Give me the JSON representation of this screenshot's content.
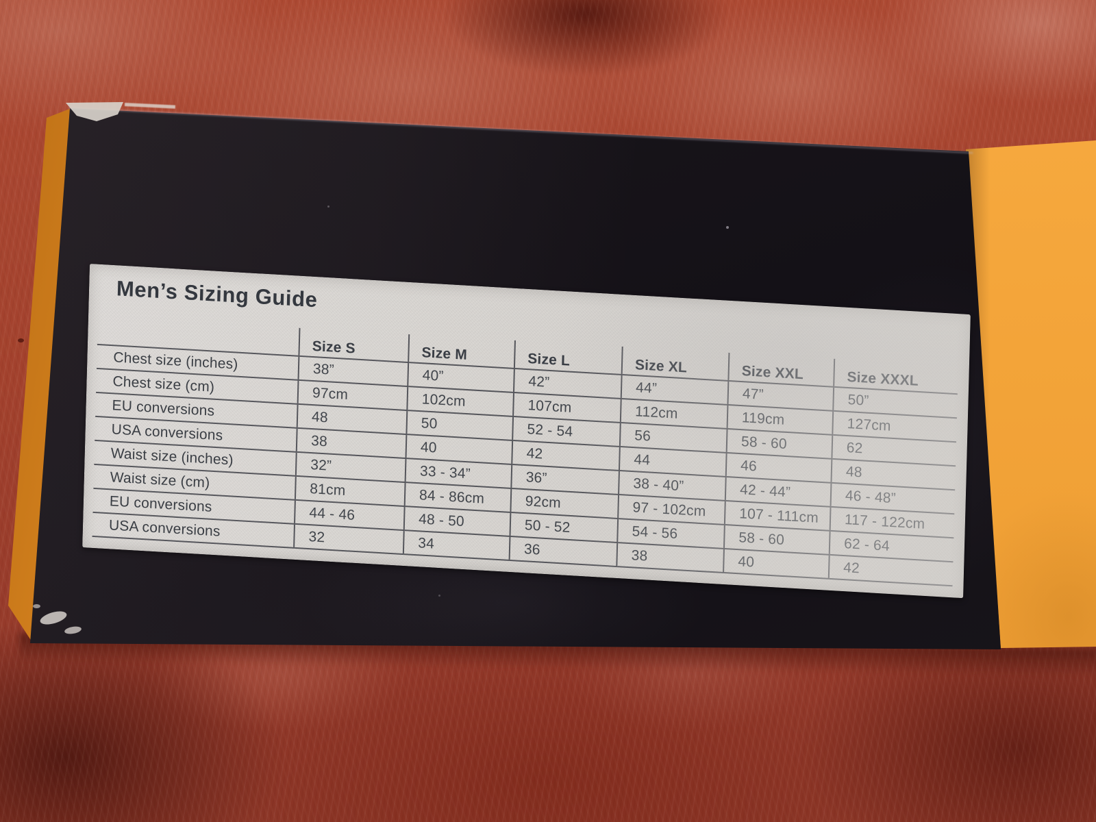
{
  "label": {
    "title": "Men’s Sizing Guide",
    "table": {
      "columns": [
        "",
        "Size S",
        "Size M",
        "Size L",
        "Size XL",
        "Size XXL",
        "Size XXXL"
      ],
      "rows": [
        {
          "label": "Chest size (inches)",
          "values": [
            "38”",
            "40”",
            "42”",
            "44”",
            "47”",
            "50”"
          ]
        },
        {
          "label": "Chest size (cm)",
          "values": [
            "97cm",
            "102cm",
            "107cm",
            "112cm",
            "119cm",
            "127cm"
          ]
        },
        {
          "label": "EU conversions",
          "values": [
            "48",
            "50",
            "52 - 54",
            "56",
            "58 - 60",
            "62"
          ]
        },
        {
          "label": "USA conversions",
          "values": [
            "38",
            "40",
            "42",
            "44",
            "46",
            "48"
          ]
        },
        {
          "label": "Waist size (inches)",
          "values": [
            "32”",
            "33 - 34”",
            "36”",
            "38 - 40”",
            "42 - 44”",
            "46 - 48”"
          ]
        },
        {
          "label": "Waist size (cm)",
          "values": [
            "81cm",
            "84 - 86cm",
            "92cm",
            "97 - 102cm",
            "107 - 111cm",
            "117 - 122cm"
          ]
        },
        {
          "label": "EU conversions",
          "values": [
            "44 - 46",
            "48 - 50",
            "50 - 52",
            "54 - 56",
            "58 - 60",
            "62 - 64"
          ]
        },
        {
          "label": "USA conversions",
          "values": [
            "32",
            "34",
            "36",
            "38",
            "40",
            "42"
          ]
        }
      ]
    }
  },
  "colors": {
    "carpet_red": "#a2412d",
    "carpet_dark": "#8a3526",
    "box_black": "#131016",
    "box_orange": "#f3a439",
    "label_paper": "#d8d5d1",
    "label_ink": "#3c4046"
  }
}
